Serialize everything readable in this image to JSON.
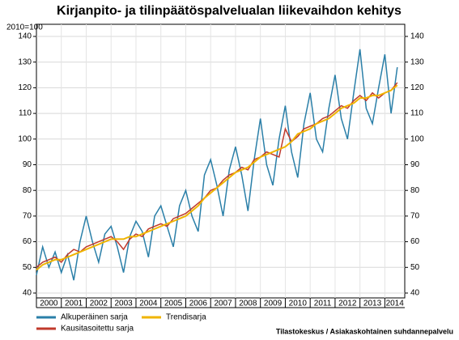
{
  "chart_data": {
    "type": "line",
    "title": "Kirjanpito- ja tilinpäätöspalvelualan liikevaihdon kehitys",
    "ylabel": "2010=100",
    "source": "Tilastokeskus / Asiakaskohtainen suhdannepalvelu",
    "x": [
      2000,
      2000.25,
      2000.5,
      2000.75,
      2001,
      2001.25,
      2001.5,
      2001.75,
      2002,
      2002.25,
      2002.5,
      2002.75,
      2003,
      2003.25,
      2003.5,
      2003.75,
      2004,
      2004.25,
      2004.5,
      2004.75,
      2005,
      2005.25,
      2005.5,
      2005.75,
      2006,
      2006.25,
      2006.5,
      2006.75,
      2007,
      2007.25,
      2007.5,
      2007.75,
      2008,
      2008.25,
      2008.5,
      2008.75,
      2009,
      2009.25,
      2009.5,
      2009.75,
      2010,
      2010.25,
      2010.5,
      2010.75,
      2011,
      2011.25,
      2011.5,
      2011.75,
      2012,
      2012.25,
      2012.5,
      2012.75,
      2013,
      2013.25,
      2013.5,
      2013.75,
      2014,
      2014.25,
      2014.5
    ],
    "years": [
      2000,
      2001,
      2002,
      2003,
      2004,
      2005,
      2006,
      2007,
      2008,
      2009,
      2010,
      2011,
      2012,
      2013,
      2014
    ],
    "xlim": [
      2000,
      2014.8
    ],
    "ylim": [
      40,
      140
    ],
    "yticks": [
      40,
      50,
      60,
      70,
      80,
      90,
      100,
      110,
      120,
      130,
      140
    ],
    "y2lim": [
      40,
      140
    ],
    "y2ticks": [
      40,
      50,
      60,
      70,
      80,
      90,
      100,
      110,
      120,
      130,
      140
    ],
    "grid": true,
    "series": [
      {
        "name": "Alkuperäinen sarja",
        "color": "#2a7fa8",
        "values": [
          47,
          58,
          50,
          56,
          48,
          55,
          45,
          60,
          70,
          60,
          52,
          63,
          66,
          58,
          48,
          62,
          68,
          64,
          54,
          70,
          74,
          66,
          58,
          74,
          80,
          70,
          64,
          86,
          92,
          82,
          70,
          88,
          97,
          86,
          72,
          92,
          108,
          90,
          82,
          100,
          113,
          95,
          85,
          106,
          118,
          100,
          95,
          112,
          125,
          108,
          100,
          118,
          135,
          112,
          106,
          120,
          133,
          110,
          128
        ]
      },
      {
        "name": "Kausitasoitettu sarja",
        "color": "#c0392b",
        "values": [
          50,
          52,
          53,
          54,
          52,
          55,
          57,
          56,
          58,
          59,
          60,
          61,
          62,
          60,
          57,
          61,
          63,
          62,
          65,
          66,
          67,
          66,
          69,
          70,
          71,
          73,
          75,
          77,
          80,
          81,
          84,
          86,
          87,
          89,
          88,
          92,
          93,
          95,
          94,
          93,
          104,
          99,
          101,
          104,
          105,
          106,
          108,
          109,
          111,
          113,
          112,
          115,
          117,
          115,
          118,
          116,
          118,
          119,
          122
        ]
      },
      {
        "name": "Trendisarja",
        "color": "#f0b400",
        "values": [
          49,
          51,
          52,
          53,
          53,
          54,
          55,
          56,
          57,
          58,
          59,
          60,
          61,
          61,
          61,
          62,
          62,
          63,
          64,
          65,
          66,
          67,
          68,
          69,
          70,
          72,
          74,
          77,
          79,
          81,
          83,
          85,
          87,
          88,
          89,
          91,
          93,
          94,
          95,
          96,
          97,
          99,
          102,
          103,
          104,
          106,
          107,
          108,
          110,
          112,
          113,
          114,
          116,
          116,
          117,
          117,
          118,
          119,
          121
        ]
      }
    ]
  }
}
